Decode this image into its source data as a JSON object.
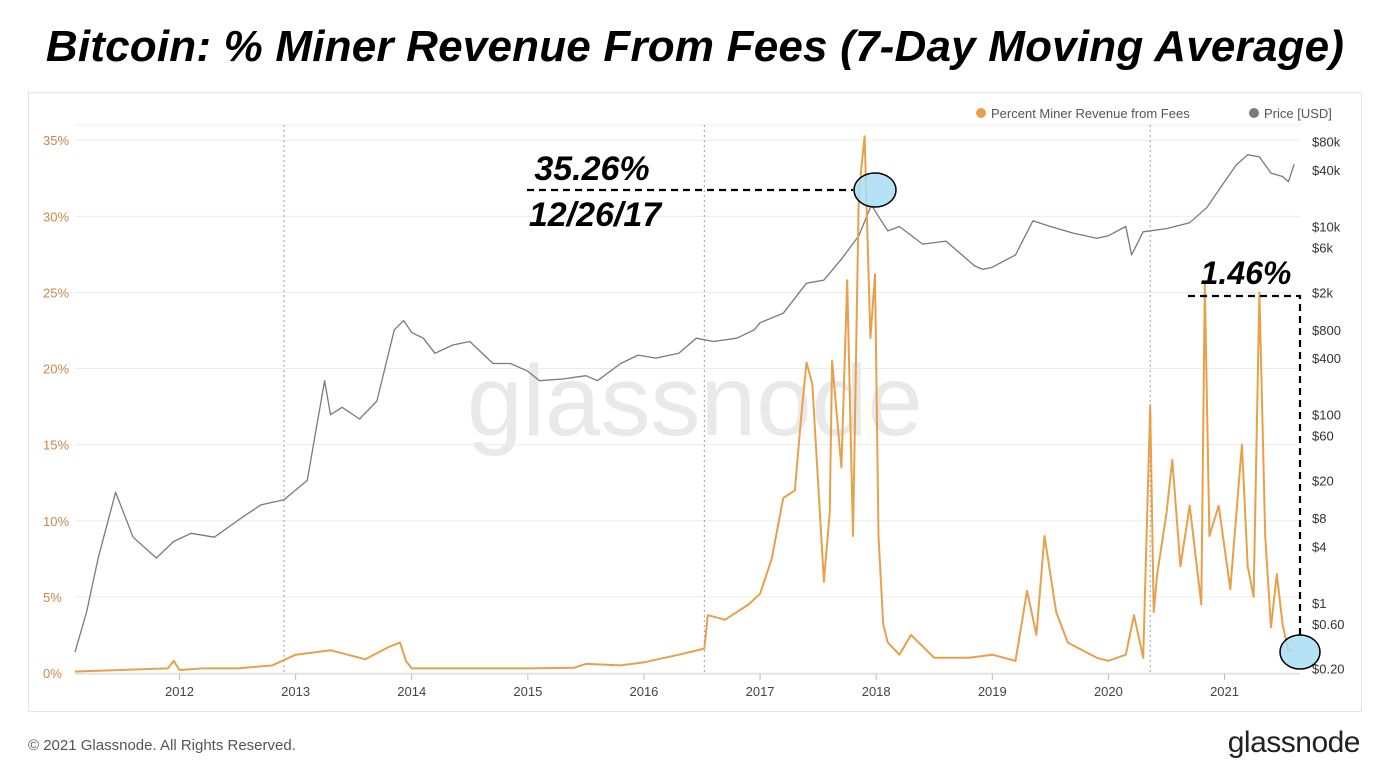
{
  "page": {
    "title": "Bitcoin: % Miner Revenue From Fees (7-Day Moving Average)",
    "copyright": "© 2021 Glassnode. All Rights Reserved.",
    "brand": "glassnode",
    "watermark": "glassnode"
  },
  "annotations": {
    "peak_value": "35.26%",
    "peak_date": "12/26/17",
    "latest_value": "1.46%"
  },
  "colors": {
    "fees": "#E8A04A",
    "price": "#7a7a7a",
    "grid": "#ececec",
    "marker_fill": "#A9DDF3",
    "left_axis_text": "#C9874A"
  },
  "chart_data": {
    "type": "line",
    "title": "Bitcoin: % Miner Revenue From Fees (7-Day Moving Average)",
    "legend": {
      "position": "top-right",
      "entries": [
        {
          "name": "Percent Miner Revenue from Fees",
          "color": "#E8A04A"
        },
        {
          "name": "Price [USD]",
          "color": "#7a7a7a"
        }
      ]
    },
    "x_range": [
      2011.1,
      2021.65
    ],
    "x_ticks": [
      "2012",
      "2013",
      "2014",
      "2015",
      "2016",
      "2017",
      "2018",
      "2019",
      "2020",
      "2021"
    ],
    "halving_lines": [
      2012.9,
      2016.52,
      2020.36
    ],
    "y_left": {
      "label": "Percent Miner Revenue from Fees",
      "range": [
        0,
        36
      ],
      "ticks": [
        "0%",
        "5%",
        "10%",
        "15%",
        "20%",
        "25%",
        "30%",
        "35%"
      ],
      "tick_values": [
        0,
        5,
        10,
        15,
        20,
        25,
        30,
        35
      ]
    },
    "y_right": {
      "label": "Price [USD]",
      "scale": "log",
      "range": [
        0.18,
        120000
      ],
      "ticks": [
        "$0.20",
        "$0.60",
        "$1",
        "$4",
        "$8",
        "$20",
        "$60",
        "$100",
        "$400",
        "$800",
        "$2k",
        "$6k",
        "$10k",
        "$40k",
        "$80k"
      ],
      "tick_values": [
        0.2,
        0.6,
        1,
        4,
        8,
        20,
        60,
        100,
        400,
        800,
        2000,
        6000,
        10000,
        40000,
        80000
      ]
    },
    "series": [
      {
        "name": "Percent Miner Revenue from Fees",
        "axis": "left",
        "x": [
          2011.1,
          2011.5,
          2011.9,
          2011.95,
          2012.0,
          2012.2,
          2012.5,
          2012.8,
          2013.0,
          2013.3,
          2013.6,
          2013.8,
          2013.9,
          2013.95,
          2014.0,
          2014.5,
          2015.0,
          2015.4,
          2015.5,
          2015.8,
          2016.0,
          2016.3,
          2016.52,
          2016.55,
          2016.7,
          2016.9,
          2017.0,
          2017.1,
          2017.2,
          2017.3,
          2017.35,
          2017.4,
          2017.45,
          2017.5,
          2017.55,
          2017.6,
          2017.62,
          2017.7,
          2017.75,
          2017.8,
          2017.85,
          2017.9,
          2017.95,
          2017.99,
          2018.02,
          2018.06,
          2018.1,
          2018.2,
          2018.3,
          2018.5,
          2018.8,
          2019.0,
          2019.2,
          2019.3,
          2019.38,
          2019.45,
          2019.55,
          2019.65,
          2019.9,
          2020.0,
          2020.15,
          2020.22,
          2020.3,
          2020.36,
          2020.39,
          2020.42,
          2020.5,
          2020.55,
          2020.6,
          2020.62,
          2020.7,
          2020.8,
          2020.83,
          2020.87,
          2020.95,
          2021.05,
          2021.15,
          2021.2,
          2021.25,
          2021.3,
          2021.35,
          2021.4,
          2021.45,
          2021.5,
          2021.55,
          2021.6
        ],
        "values": [
          0.1,
          0.2,
          0.3,
          0.8,
          0.2,
          0.3,
          0.3,
          0.5,
          1.2,
          1.5,
          0.9,
          1.7,
          2.0,
          0.8,
          0.3,
          0.3,
          0.3,
          0.35,
          0.6,
          0.5,
          0.7,
          1.2,
          1.6,
          3.8,
          3.5,
          4.5,
          5.2,
          7.5,
          11.5,
          12.0,
          16.5,
          20.4,
          19.0,
          12.5,
          6.0,
          10.5,
          20.5,
          13.5,
          25.8,
          9.0,
          31.5,
          35.26,
          22.0,
          26.2,
          9.0,
          3.2,
          2.0,
          1.2,
          2.5,
          1.0,
          1.0,
          1.2,
          0.8,
          5.4,
          2.5,
          9.0,
          4.0,
          2.0,
          1.0,
          0.8,
          1.2,
          3.8,
          1.0,
          17.6,
          4.0,
          6.5,
          10.5,
          14.0,
          9.0,
          7.0,
          11.0,
          4.5,
          25.5,
          9.0,
          11.0,
          5.5,
          15.0,
          7.0,
          5.0,
          25.0,
          9.0,
          3.0,
          6.5,
          3.2,
          1.46,
          1.5
        ]
      },
      {
        "name": "Price [USD]",
        "axis": "right",
        "x": [
          2011.1,
          2011.2,
          2011.3,
          2011.45,
          2011.6,
          2011.8,
          2011.95,
          2012.1,
          2012.3,
          2012.5,
          2012.7,
          2012.9,
          2013.1,
          2013.25,
          2013.3,
          2013.4,
          2013.55,
          2013.7,
          2013.85,
          2013.93,
          2014.0,
          2014.1,
          2014.2,
          2014.35,
          2014.5,
          2014.7,
          2014.85,
          2015.0,
          2015.1,
          2015.3,
          2015.5,
          2015.6,
          2015.8,
          2015.95,
          2016.1,
          2016.3,
          2016.45,
          2016.6,
          2016.8,
          2016.95,
          2017.0,
          2017.2,
          2017.4,
          2017.55,
          2017.7,
          2017.85,
          2017.96,
          2018.0,
          2018.1,
          2018.2,
          2018.4,
          2018.6,
          2018.85,
          2018.92,
          2019.0,
          2019.2,
          2019.35,
          2019.5,
          2019.7,
          2019.9,
          2020.0,
          2020.15,
          2020.2,
          2020.3,
          2020.5,
          2020.7,
          2020.85,
          2021.0,
          2021.1,
          2021.2,
          2021.3,
          2021.4,
          2021.5,
          2021.55,
          2021.6
        ],
        "values": [
          0.3,
          0.8,
          3.0,
          15.0,
          5.0,
          3.0,
          4.5,
          5.5,
          5.0,
          7.5,
          11.0,
          12.5,
          20.0,
          230,
          100,
          120,
          90,
          140,
          800,
          1000,
          750,
          650,
          450,
          550,
          600,
          350,
          350,
          290,
          230,
          240,
          260,
          230,
          350,
          430,
          400,
          450,
          650,
          600,
          650,
          800,
          950,
          1200,
          2500,
          2700,
          4500,
          8000,
          17000,
          14000,
          9000,
          10000,
          6500,
          7000,
          3800,
          3500,
          3700,
          5000,
          11500,
          10000,
          8500,
          7500,
          8000,
          10000,
          5000,
          8800,
          9500,
          11000,
          16000,
          30000,
          45000,
          58000,
          55000,
          37000,
          34000,
          30000,
          46000
        ]
      }
    ]
  }
}
